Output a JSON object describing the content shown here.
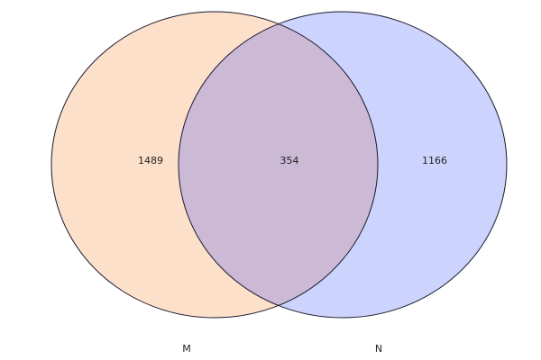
{
  "sets": [
    {
      "name": "M",
      "only_count": "1489",
      "color": "#fde0ca"
    },
    {
      "name": "N",
      "only_count": "1166",
      "color": "#ccd4fd"
    }
  ],
  "intersection": {
    "count": "354",
    "color": "#cbb9d6"
  },
  "outline_color": "#1a1a2e"
}
